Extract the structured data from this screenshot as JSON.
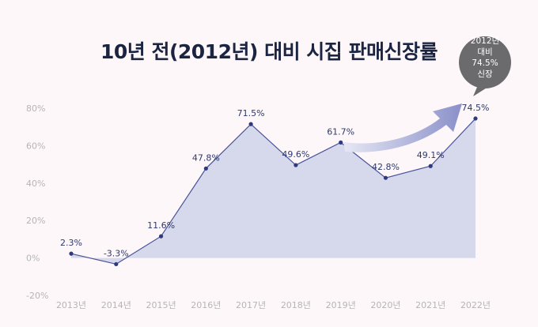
{
  "chart_data": {
    "type": "area",
    "title": "10년 전(2012년) 대비 시집 판매신장률",
    "categories": [
      "2013년",
      "2014년",
      "2015년",
      "2016년",
      "2017년",
      "2018년",
      "2019년",
      "2020년",
      "2021년",
      "2022년"
    ],
    "series": [
      {
        "name": "판매신장률",
        "values": [
          2.3,
          -3.3,
          11.6,
          47.8,
          71.5,
          49.6,
          61.7,
          42.8,
          49.1,
          74.5
        ]
      }
    ],
    "data_labels": [
      "2.3%",
      "-3.3%",
      "11.6%",
      "47.8%",
      "71.5%",
      "49.6%",
      "61.7%",
      "42.8%",
      "49.1%",
      "74.5%"
    ],
    "ylim": [
      -20,
      80
    ],
    "yticks": [
      -20,
      0,
      20,
      40,
      60,
      80
    ],
    "ytick_labels": [
      "-20%",
      "0%",
      "20%",
      "40%",
      "60%",
      "80%"
    ],
    "xlabel": "",
    "ylabel": "",
    "grid": false,
    "annotation": {
      "lines": [
        "2012년",
        "대비",
        "74.5%",
        "신장"
      ]
    }
  },
  "colors": {
    "area": "#d6d8eb",
    "line": "#4a5399",
    "marker": "#2f3a7e",
    "arrow_start": "#e6e8f4",
    "arrow_end": "#8a90c9",
    "badge": "#6b6b6d",
    "title": "#1b2440"
  }
}
